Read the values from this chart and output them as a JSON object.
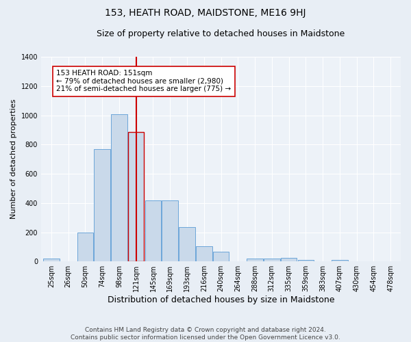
{
  "title": "153, HEATH ROAD, MAIDSTONE, ME16 9HJ",
  "subtitle": "Size of property relative to detached houses in Maidstone",
  "xlabel": "Distribution of detached houses by size in Maidstone",
  "ylabel": "Number of detached properties",
  "categories": [
    "25sqm",
    "26sqm",
    "50sqm",
    "74sqm",
    "98sqm",
    "121sqm",
    "145sqm",
    "169sqm",
    "193sqm",
    "216sqm",
    "240sqm",
    "264sqm",
    "288sqm",
    "312sqm",
    "335sqm",
    "359sqm",
    "383sqm",
    "407sqm",
    "430sqm",
    "454sqm",
    "478sqm"
  ],
  "bar_heights": [
    20,
    0,
    200,
    770,
    1005,
    885,
    420,
    420,
    235,
    105,
    65,
    0,
    20,
    20,
    25,
    10,
    0,
    10,
    0,
    0,
    0
  ],
  "bar_color": "#c9d9ea",
  "bar_edge_color": "#5b9bd5",
  "highlight_bar_index": 5,
  "highlight_edge_color": "#cc0000",
  "vline_x_index": 5,
  "vline_color": "#cc0000",
  "annotation_text": "153 HEATH ROAD: 151sqm\n← 79% of detached houses are smaller (2,980)\n21% of semi-detached houses are larger (775) →",
  "annotation_box_color": "#ffffff",
  "annotation_box_edge_color": "#cc0000",
  "ylim": [
    0,
    1400
  ],
  "yticks": [
    0,
    200,
    400,
    600,
    800,
    1000,
    1200,
    1400
  ],
  "footer_text": "Contains HM Land Registry data © Crown copyright and database right 2024.\nContains public sector information licensed under the Open Government Licence v3.0.",
  "bg_color": "#e8eef5",
  "plot_bg_color": "#edf2f8",
  "grid_color": "#ffffff",
  "title_fontsize": 10,
  "subtitle_fontsize": 9,
  "xlabel_fontsize": 9,
  "ylabel_fontsize": 8,
  "tick_fontsize": 7,
  "annotation_fontsize": 7.5,
  "footer_fontsize": 6.5
}
